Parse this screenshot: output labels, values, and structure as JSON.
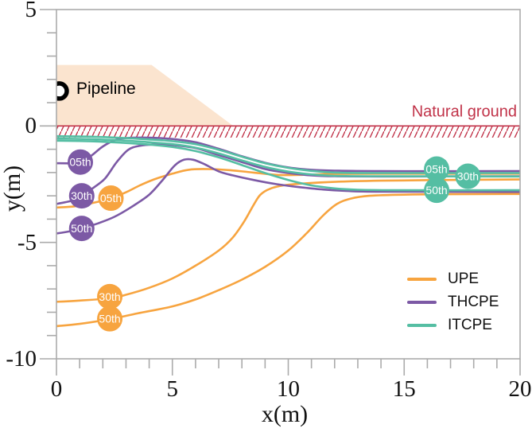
{
  "chart_data": {
    "type": "line",
    "title": "",
    "xlabel": "x(m)",
    "ylabel": "y(m)",
    "xlim": [
      0,
      20
    ],
    "ylim": [
      -10,
      5
    ],
    "xticks": [
      0,
      5,
      10,
      15,
      20
    ],
    "yticks": [
      5,
      0,
      -5,
      -10
    ],
    "minor_tick_step": 1,
    "grid": false,
    "legend_position": "lower right",
    "legend": [
      {
        "label": "UPE",
        "color": "#F7A43F"
      },
      {
        "label": "THCPE",
        "color": "#7C59A5"
      },
      {
        "label": "ITCPE",
        "color": "#55BEA3"
      }
    ],
    "series": [
      {
        "name": "UPE-05th",
        "group": "UPE",
        "percentile": "05th",
        "color": "#F7A43F",
        "points": [
          [
            0,
            -3.5
          ],
          [
            0.8,
            -3.45
          ],
          [
            1.6,
            -3.3
          ],
          [
            2.35,
            -3.1
          ],
          [
            3,
            -2.85
          ],
          [
            3.6,
            -2.55
          ],
          [
            4.2,
            -2.3
          ],
          [
            5,
            -2.05
          ],
          [
            5.7,
            -1.88
          ],
          [
            6.5,
            -1.85
          ],
          [
            7.5,
            -1.9
          ],
          [
            8.5,
            -2.0
          ],
          [
            9.5,
            -2.1
          ],
          [
            10.5,
            -2.1
          ],
          [
            12,
            -2.06
          ],
          [
            14,
            -2.05
          ],
          [
            17,
            -2.05
          ],
          [
            20,
            -2.05
          ]
        ]
      },
      {
        "name": "UPE-30th",
        "group": "UPE",
        "percentile": "30th",
        "color": "#F7A43F",
        "points": [
          [
            0,
            -7.55
          ],
          [
            1,
            -7.5
          ],
          [
            2.3,
            -7.4
          ],
          [
            3,
            -7.25
          ],
          [
            4,
            -6.95
          ],
          [
            5,
            -6.55
          ],
          [
            6,
            -6.0
          ],
          [
            7,
            -5.35
          ],
          [
            7.6,
            -4.8
          ],
          [
            8.1,
            -4.1
          ],
          [
            8.5,
            -3.4
          ],
          [
            8.8,
            -2.95
          ],
          [
            9.2,
            -2.7
          ],
          [
            9.8,
            -2.55
          ],
          [
            10.5,
            -2.48
          ],
          [
            12,
            -2.4
          ],
          [
            14,
            -2.35
          ],
          [
            17,
            -2.32
          ],
          [
            20,
            -2.3
          ]
        ]
      },
      {
        "name": "UPE-50th",
        "group": "UPE",
        "percentile": "50th",
        "color": "#F7A43F",
        "points": [
          [
            0,
            -8.6
          ],
          [
            1,
            -8.5
          ],
          [
            2.3,
            -8.3
          ],
          [
            3.5,
            -8.05
          ],
          [
            5,
            -7.75
          ],
          [
            6,
            -7.45
          ],
          [
            7,
            -7.05
          ],
          [
            8,
            -6.6
          ],
          [
            9,
            -6.05
          ],
          [
            10,
            -5.35
          ],
          [
            10.8,
            -4.6
          ],
          [
            11.5,
            -3.85
          ],
          [
            12.1,
            -3.35
          ],
          [
            12.7,
            -3.12
          ],
          [
            13.5,
            -3.0
          ],
          [
            15,
            -2.95
          ],
          [
            17,
            -2.93
          ],
          [
            20,
            -2.92
          ]
        ]
      },
      {
        "name": "THCPE-05th",
        "group": "THCPE",
        "percentile": "05th",
        "color": "#7C59A5",
        "points": [
          [
            0,
            -1.6
          ],
          [
            0.7,
            -1.6
          ],
          [
            1.03,
            -1.55
          ],
          [
            1.5,
            -1.28
          ],
          [
            2,
            -0.88
          ],
          [
            2.5,
            -0.62
          ],
          [
            3,
            -0.52
          ],
          [
            4,
            -0.5
          ],
          [
            5,
            -0.56
          ],
          [
            6,
            -0.7
          ],
          [
            7,
            -0.98
          ],
          [
            8,
            -1.3
          ],
          [
            9,
            -1.58
          ],
          [
            10,
            -1.78
          ],
          [
            11,
            -1.88
          ],
          [
            12,
            -1.92
          ],
          [
            14,
            -1.94
          ],
          [
            20,
            -1.94
          ]
        ]
      },
      {
        "name": "THCPE-30th",
        "group": "THCPE",
        "percentile": "30th",
        "color": "#7C59A5",
        "points": [
          [
            0,
            -3.35
          ],
          [
            0.7,
            -3.2
          ],
          [
            1.09,
            -3.0
          ],
          [
            1.6,
            -2.65
          ],
          [
            2.1,
            -2.25
          ],
          [
            2.6,
            -1.55
          ],
          [
            3.1,
            -1.02
          ],
          [
            3.6,
            -0.85
          ],
          [
            4.2,
            -0.8
          ],
          [
            5,
            -0.82
          ],
          [
            6,
            -0.95
          ],
          [
            7,
            -1.25
          ],
          [
            8,
            -1.55
          ],
          [
            9,
            -1.85
          ],
          [
            10,
            -2.02
          ],
          [
            11,
            -2.12
          ],
          [
            12,
            -2.16
          ],
          [
            14,
            -2.17
          ],
          [
            20,
            -2.16
          ]
        ]
      },
      {
        "name": "THCPE-50th",
        "group": "THCPE",
        "percentile": "50th",
        "color": "#7C59A5",
        "points": [
          [
            0,
            -4.62
          ],
          [
            0.7,
            -4.5
          ],
          [
            1.09,
            -4.4
          ],
          [
            1.8,
            -4.18
          ],
          [
            2.5,
            -3.9
          ],
          [
            3.2,
            -3.5
          ],
          [
            4,
            -2.95
          ],
          [
            4.6,
            -2.3
          ],
          [
            5.1,
            -1.7
          ],
          [
            5.5,
            -1.45
          ],
          [
            5.9,
            -1.45
          ],
          [
            6.4,
            -1.65
          ],
          [
            7,
            -1.95
          ],
          [
            7.6,
            -2.12
          ],
          [
            8.5,
            -2.32
          ],
          [
            9.5,
            -2.5
          ],
          [
            10.5,
            -2.63
          ],
          [
            11.5,
            -2.73
          ],
          [
            12.5,
            -2.79
          ],
          [
            14,
            -2.82
          ],
          [
            20,
            -2.83
          ]
        ]
      },
      {
        "name": "ITCPE-05th",
        "group": "ITCPE",
        "percentile": "05th",
        "color": "#55BEA3",
        "points": [
          [
            0,
            -0.44
          ],
          [
            1.5,
            -0.46
          ],
          [
            3,
            -0.52
          ],
          [
            4,
            -0.58
          ],
          [
            5,
            -0.65
          ],
          [
            6,
            -0.78
          ],
          [
            7,
            -1.02
          ],
          [
            8,
            -1.32
          ],
          [
            9,
            -1.6
          ],
          [
            10,
            -1.8
          ],
          [
            11,
            -1.93
          ],
          [
            12,
            -2.0
          ],
          [
            14,
            -2.02
          ],
          [
            20,
            -2.02
          ]
        ]
      },
      {
        "name": "ITCPE-30th",
        "group": "ITCPE",
        "percentile": "30th",
        "color": "#55BEA3",
        "points": [
          [
            0,
            -0.54
          ],
          [
            1.5,
            -0.57
          ],
          [
            3,
            -0.63
          ],
          [
            4,
            -0.7
          ],
          [
            5,
            -0.78
          ],
          [
            6,
            -0.93
          ],
          [
            7,
            -1.18
          ],
          [
            8,
            -1.48
          ],
          [
            9,
            -1.76
          ],
          [
            10,
            -1.96
          ],
          [
            11,
            -2.08
          ],
          [
            12,
            -2.14
          ],
          [
            14,
            -2.16
          ],
          [
            20,
            -2.17
          ]
        ]
      },
      {
        "name": "ITCPE-50th",
        "group": "ITCPE",
        "percentile": "50th",
        "color": "#55BEA3",
        "points": [
          [
            0,
            -0.63
          ],
          [
            1.5,
            -0.66
          ],
          [
            3,
            -0.73
          ],
          [
            4,
            -0.8
          ],
          [
            5,
            -0.9
          ],
          [
            6,
            -1.08
          ],
          [
            7,
            -1.35
          ],
          [
            8,
            -1.68
          ],
          [
            9,
            -2.02
          ],
          [
            10,
            -2.32
          ],
          [
            11,
            -2.55
          ],
          [
            12,
            -2.68
          ],
          [
            13,
            -2.74
          ],
          [
            15,
            -2.76
          ],
          [
            20,
            -2.76
          ]
        ]
      }
    ],
    "percentile_markers": [
      {
        "group": "UPE",
        "label": "05th",
        "x": 2.35,
        "y": -3.1,
        "color": "#F7A43F"
      },
      {
        "group": "UPE",
        "label": "30th",
        "x": 2.3,
        "y": -7.33,
        "color": "#F7A43F"
      },
      {
        "group": "UPE",
        "label": "50th",
        "x": 2.3,
        "y": -8.28,
        "color": "#F7A43F"
      },
      {
        "group": "THCPE",
        "label": "05th",
        "x": 1.03,
        "y": -1.55,
        "color": "#7C59A5"
      },
      {
        "group": "THCPE",
        "label": "30th",
        "x": 1.09,
        "y": -3.0,
        "color": "#7C59A5"
      },
      {
        "group": "THCPE",
        "label": "50th",
        "x": 1.09,
        "y": -4.4,
        "color": "#7C59A5"
      },
      {
        "group": "ITCPE",
        "label": "05th",
        "x": 16.4,
        "y": -1.85,
        "color": "#55BEA3"
      },
      {
        "group": "ITCPE",
        "label": "30th",
        "x": 17.75,
        "y": -2.16,
        "color": "#55BEA3"
      },
      {
        "group": "ITCPE",
        "label": "50th",
        "x": 16.4,
        "y": -2.76,
        "color": "#55BEA3"
      }
    ],
    "ground": {
      "label": "Natural ground",
      "color": "#C13349",
      "y": 0,
      "hatch_depth": 0.5
    },
    "berm": {
      "polygon": [
        [
          0,
          0
        ],
        [
          0,
          2.62
        ],
        [
          4.1,
          2.62
        ],
        [
          7.63,
          0
        ]
      ],
      "fill": "#FBE4CF"
    },
    "pipeline": {
      "label": "Pipeline",
      "x": 0.12,
      "y": 1.5,
      "radius_m": 0.42,
      "color": "#000000"
    }
  },
  "colors": {
    "axis": "#ABABAB",
    "text": "#111111",
    "marker_text": "#FFFFFF"
  }
}
